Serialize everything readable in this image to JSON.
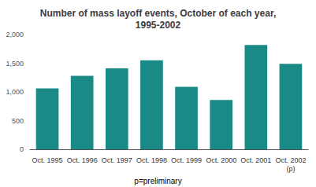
{
  "chart_data": {
    "type": "bar",
    "title": "Number of mass layoff events, October of each year,\n1995-2002",
    "categories": [
      "Oct. 1995",
      "Oct. 1996",
      "Oct. 1997",
      "Oct. 1998",
      "Oct. 1999",
      "Oct. 2000",
      "Oct. 2001",
      "Oct. 2002\n(p)"
    ],
    "values": [
      1060,
      1280,
      1410,
      1550,
      1090,
      860,
      1820,
      1490
    ],
    "color": "#1a8a87",
    "ylim": [
      0,
      2000
    ],
    "yticks": [
      0,
      500,
      {
        "value": 1000,
        "label": "1,000"
      },
      {
        "value": 1500,
        "label": "1,500"
      },
      {
        "value": 2000,
        "label": "2,000"
      }
    ],
    "grid": false,
    "annotations": [
      "p=preliminary"
    ]
  }
}
